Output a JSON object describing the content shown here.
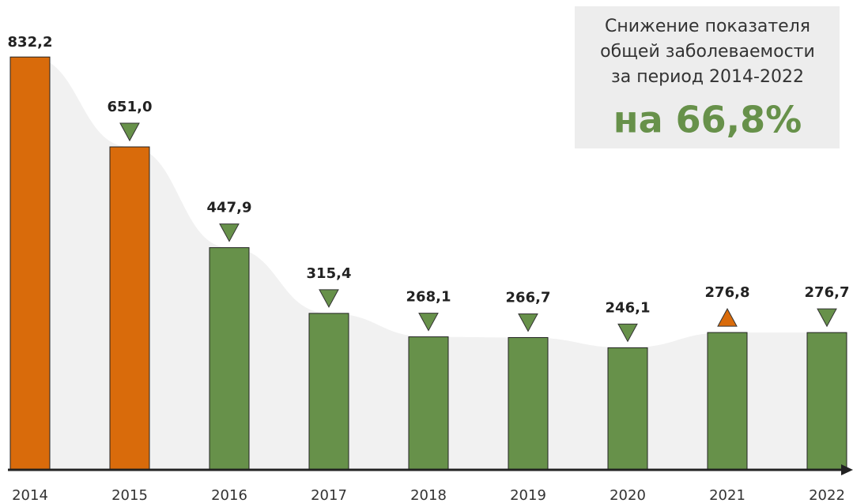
{
  "chart_data": {
    "type": "bar",
    "categories": [
      "2014",
      "2015",
      "2016",
      "2017",
      "2018",
      "2019",
      "2020",
      "2021",
      "2022"
    ],
    "values": [
      832.2,
      651.0,
      447.9,
      315.4,
      268.1,
      266.7,
      246.1,
      276.8,
      276.7
    ],
    "value_labels": [
      "832,2",
      "651,0",
      "447,9",
      "315,4",
      "268,1",
      "266,7",
      "246,1",
      "276,8",
      "276,7"
    ],
    "colors": [
      "#d96b0b",
      "#d96b0b",
      "#67914a",
      "#67914a",
      "#67914a",
      "#67914a",
      "#67914a",
      "#67914a",
      "#67914a"
    ],
    "ylim": [
      0,
      850
    ],
    "annotation": {
      "lines": [
        "Снижение показателя",
        "общей заболеваемости",
        "за период 2014-2022"
      ],
      "highlight": "на 66,8%",
      "highlight_color": "#67914a"
    }
  }
}
